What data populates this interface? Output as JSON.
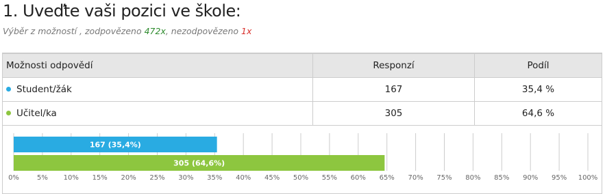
{
  "header": {
    "title": "1. Uveďte vaši pozici ve škole:",
    "subtitle": [
      "Výběr z možností , zodpovězeno ",
      "472x",
      ", nezodpovězeno ",
      "1x"
    ]
  },
  "table": {
    "columns": [
      "Možnosti odpovědí",
      "Responzí",
      "Podíl"
    ],
    "rows": [
      [
        "Student/žák",
        "167",
        "35,4 %"
      ],
      [
        "Učitel/ka",
        "305",
        "64,6 %"
      ]
    ]
  },
  "chart_data": {
    "type": "bar",
    "orientation": "horizontal",
    "values": [
      35.4,
      64.6
    ],
    "value_labels": [
      "167 (35,4%)",
      "305 (64,6%)"
    ],
    "colors": [
      "#29abe2",
      "#8dc63f"
    ],
    "xlim": [
      0,
      100
    ],
    "xticks": [
      {
        "value": 0,
        "label": "0%"
      },
      {
        "value": 5,
        "label": "5%"
      },
      {
        "value": 10,
        "label": "10%"
      },
      {
        "value": 15,
        "label": "15%"
      },
      {
        "value": 20,
        "label": "20%"
      },
      {
        "value": 25,
        "label": "25%"
      },
      {
        "value": 30,
        "label": "30%"
      },
      {
        "value": 35,
        "label": "35%"
      },
      {
        "value": 40,
        "label": "40%"
      },
      {
        "value": 45,
        "label": "45%"
      },
      {
        "value": 50,
        "label": "50%"
      },
      {
        "value": 55,
        "label": "55%"
      },
      {
        "value": 60,
        "label": "60%"
      },
      {
        "value": 65,
        "label": "65%"
      },
      {
        "value": 70,
        "label": "70%"
      },
      {
        "value": 75,
        "label": "75%"
      },
      {
        "value": 80,
        "label": "80%"
      },
      {
        "value": 85,
        "label": "85%"
      },
      {
        "value": 90,
        "label": "90%"
      },
      {
        "value": 95,
        "label": "95%"
      },
      {
        "value": 100,
        "label": "100%"
      }
    ],
    "grid": true
  }
}
